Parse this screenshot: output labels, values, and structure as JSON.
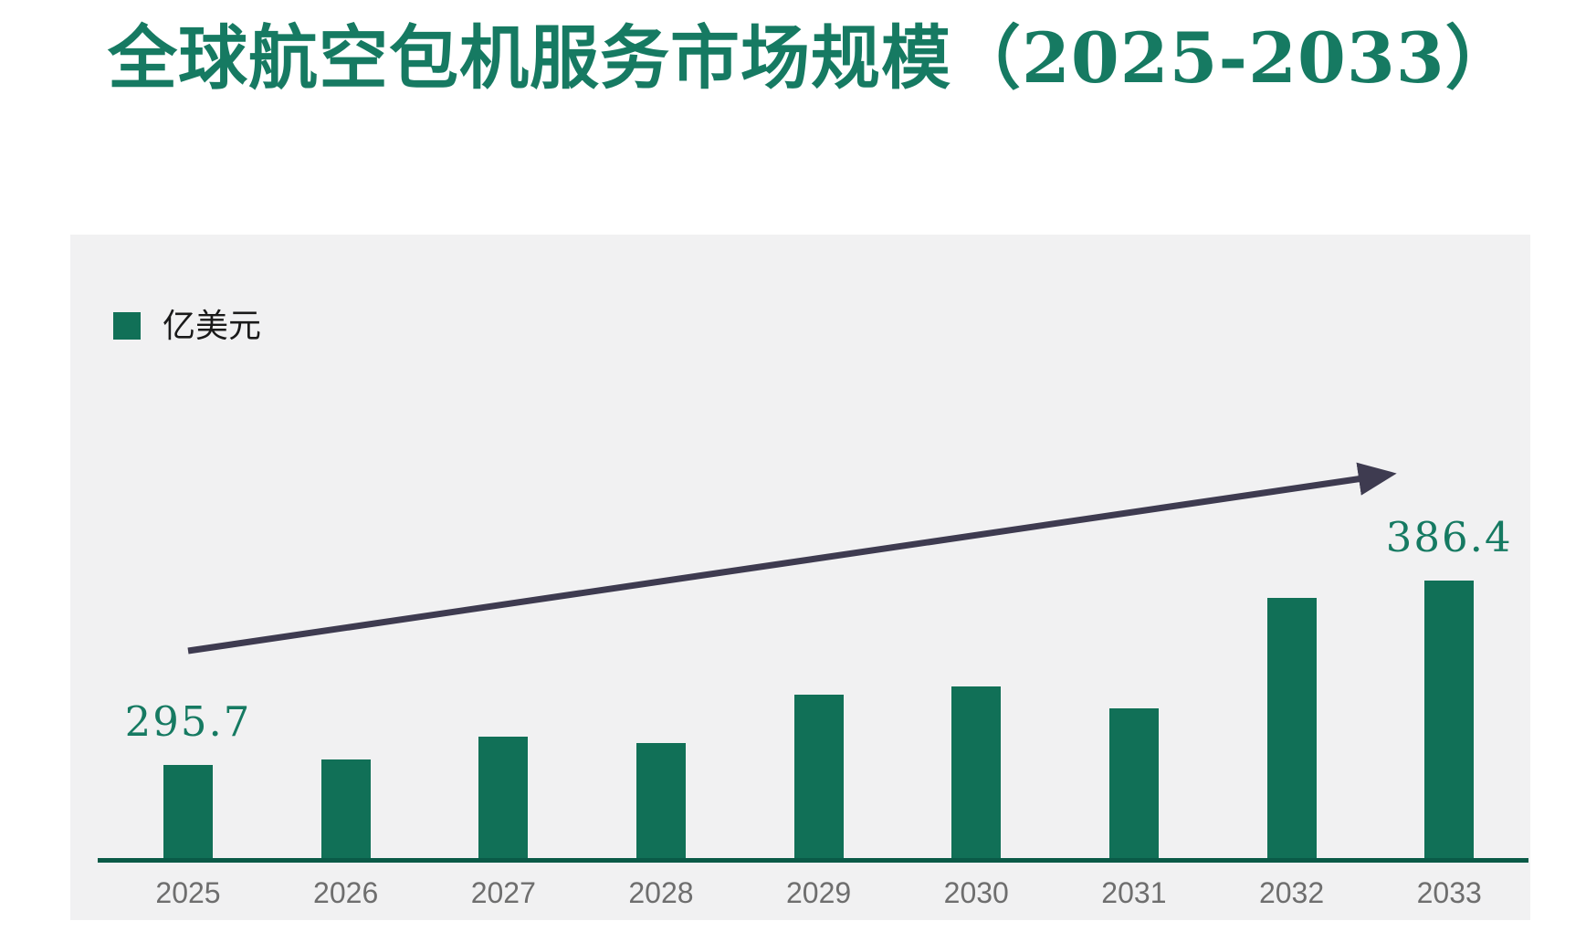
{
  "title": {
    "text": "全球航空包机服务市场规模（2025-2033）"
  },
  "legend": {
    "label": "亿美元"
  },
  "colors": {
    "title": "#167a62",
    "bar": "#117057",
    "axis_line": "#0a5a47",
    "tick_label": "#6e6e6e",
    "data_label": "#167a62",
    "panel_background": "#f1f1f2",
    "page_background": "#ffffff",
    "trend_arrow": "#3e3b50",
    "legend_text": "#1a1a1a"
  },
  "chart_data": {
    "type": "bar",
    "title": "全球航空包机服务市场规模（2025-2033）",
    "unit": "亿美元",
    "categories": [
      "2025",
      "2026",
      "2027",
      "2028",
      "2029",
      "2030",
      "2031",
      "2032",
      "2033"
    ],
    "values": [
      295.7,
      298.4,
      309.7,
      306.6,
      330.3,
      334.4,
      323.6,
      378.0,
      386.4
    ],
    "data_labels": [
      "295.7",
      "",
      "",
      "",
      "",
      "",
      "",
      "",
      "386.4"
    ],
    "grid": false,
    "legend_position": "top-left",
    "y_axis_shown": false,
    "x_axis_shown": true,
    "implied_value_at_baseline": 250,
    "trend_arrow": true
  }
}
